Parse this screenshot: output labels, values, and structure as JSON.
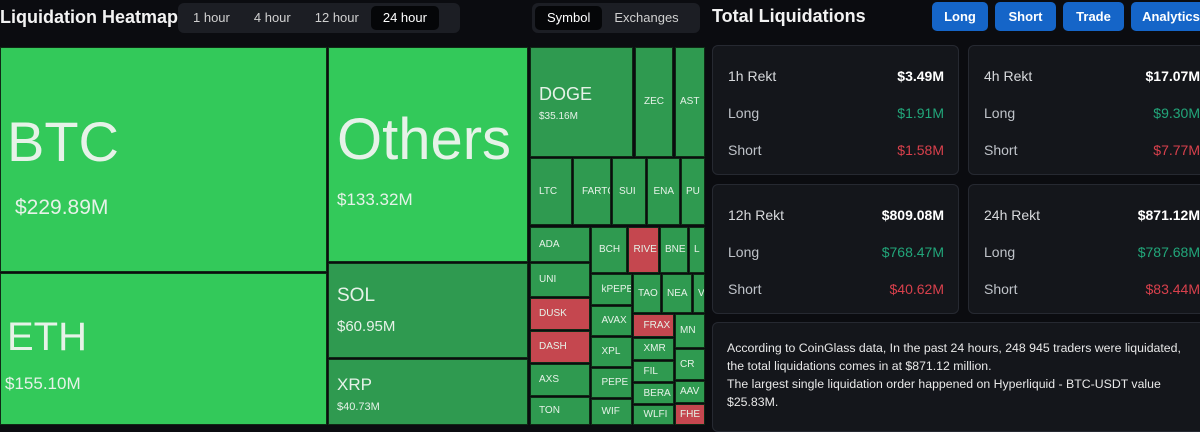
{
  "heatmap": {
    "title": "Liquidation Heatmap",
    "time_tabs": [
      "1 hour",
      "4 hour",
      "12 hour",
      "24 hour"
    ],
    "active_time": "24 hour",
    "view_tabs": [
      "Symbol",
      "Exchanges"
    ],
    "active_view": "Symbol",
    "colors": {
      "big": "#33c95a",
      "small": "#2f9a50",
      "red": "#c5474f"
    },
    "tiles": [
      {
        "label": "BTC",
        "value": "$229.89M",
        "side": "big"
      },
      {
        "label": "ETH",
        "value": "$155.10M",
        "side": "big"
      },
      {
        "label": "Others",
        "value": "$133.32M",
        "side": "big"
      },
      {
        "label": "SOL",
        "value": "$60.95M",
        "side": "small"
      },
      {
        "label": "XRP",
        "value": "$40.73M",
        "side": "small"
      },
      {
        "label": "DOGE",
        "value": "$35.16M",
        "side": "small"
      },
      {
        "label": "ZEC",
        "side": "small"
      },
      {
        "label": "AST",
        "side": "small"
      },
      {
        "label": "LTC",
        "side": "small"
      },
      {
        "label": "FARTC",
        "side": "small"
      },
      {
        "label": "SUI",
        "side": "small"
      },
      {
        "label": "ENA",
        "side": "small"
      },
      {
        "label": "PU",
        "side": "small"
      },
      {
        "label": "ADA",
        "side": "small"
      },
      {
        "label": "UNI",
        "side": "small"
      },
      {
        "label": "DUSK",
        "side": "red"
      },
      {
        "label": "DASH",
        "side": "red"
      },
      {
        "label": "AXS",
        "side": "small"
      },
      {
        "label": "TON",
        "side": "small"
      },
      {
        "label": "BCH",
        "side": "small"
      },
      {
        "label": "RIVE",
        "side": "red"
      },
      {
        "label": "BNE",
        "side": "small"
      },
      {
        "label": "L",
        "side": "small"
      },
      {
        "label": "kPEPE",
        "side": "small"
      },
      {
        "label": "TAO",
        "side": "small"
      },
      {
        "label": "NEA",
        "side": "small"
      },
      {
        "label": "V",
        "side": "small"
      },
      {
        "label": "AVAX",
        "side": "small"
      },
      {
        "label": "XPL",
        "side": "small"
      },
      {
        "label": "PEPE",
        "side": "small"
      },
      {
        "label": "WIF",
        "side": "small"
      },
      {
        "label": "FRAX",
        "side": "red"
      },
      {
        "label": "XMR",
        "side": "small"
      },
      {
        "label": "FIL",
        "side": "small"
      },
      {
        "label": "BERA",
        "side": "small"
      },
      {
        "label": "WLFI",
        "side": "small"
      },
      {
        "label": "MN",
        "side": "small"
      },
      {
        "label": "CR",
        "side": "small"
      },
      {
        "label": "AAV",
        "side": "small"
      },
      {
        "label": "FHE",
        "side": "red"
      }
    ]
  },
  "totals": {
    "title": "Total Liquidations",
    "buttons": [
      "Long",
      "Short",
      "Trade",
      "Analytics"
    ],
    "cards": [
      {
        "label": "1h Rekt",
        "total": "$3.49M",
        "long_label": "Long",
        "long": "$1.91M",
        "short_label": "Short",
        "short": "$1.58M"
      },
      {
        "label": "4h Rekt",
        "total": "$17.07M",
        "long_label": "Long",
        "long": "$9.30M",
        "short_label": "Short",
        "short": "$7.77M"
      },
      {
        "label": "12h Rekt",
        "total": "$809.08M",
        "long_label": "Long",
        "long": "$768.47M",
        "short_label": "Short",
        "short": "$40.62M"
      },
      {
        "label": "24h Rekt",
        "total": "$871.12M",
        "long_label": "Long",
        "long": "$787.68M",
        "short_label": "Short",
        "short": "$83.44M"
      }
    ],
    "description": [
      "According to CoinGlass data, In the past 24 hours, 248 945 traders were liquidated, the total liquidations comes in at $871.12 million.",
      "The largest single liquidation order happened on Hyperliquid - BTC-USDT value $25.83M."
    ]
  }
}
